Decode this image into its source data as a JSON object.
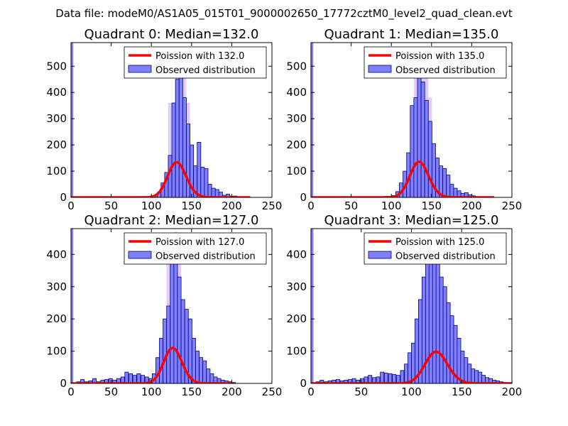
{
  "suptitle": "Data file: modeM0/AS1A05_015T01_9000002650_17772cztM0_level2_quad_clean.evt",
  "chart_data": [
    {
      "type": "bar",
      "title": "Quadrant 0: Median=132.0",
      "xlim": [
        0,
        250
      ],
      "ylim": [
        0,
        590
      ],
      "xticks": [
        0,
        50,
        100,
        150,
        200,
        250
      ],
      "xtick_labels": [
        "0",
        "50",
        "100",
        "150",
        "200",
        "250"
      ],
      "yticks": [
        0,
        100,
        200,
        300,
        400,
        500
      ],
      "ytick_labels": [
        "0",
        "100",
        "200",
        "300",
        "400",
        "500"
      ],
      "legend": {
        "position": "upper right",
        "line_label": "Poission with 132.0",
        "bar_label": "Observed distribution"
      },
      "poisson_mean": 132.0,
      "poisson_scale": 3850,
      "poisson_x_range": [
        0,
        223
      ],
      "edge_bar": {
        "x0": 0,
        "x1": 1,
        "value": 590
      },
      "bin_width": 4.5,
      "bins": [
        [
          67,
          2
        ],
        [
          76,
          3
        ],
        [
          80,
          2
        ],
        [
          90,
          3
        ],
        [
          99,
          3
        ],
        [
          103,
          8
        ],
        [
          107.5,
          20
        ],
        [
          112,
          55
        ],
        [
          116.5,
          95
        ],
        [
          121,
          160
        ],
        [
          125.5,
          360
        ],
        [
          130,
          450
        ],
        [
          134.5,
          500
        ],
        [
          139,
          380
        ],
        [
          143.5,
          280
        ],
        [
          148,
          200
        ],
        [
          152.5,
          120
        ],
        [
          157,
          210
        ],
        [
          161.5,
          115
        ],
        [
          166,
          110
        ],
        [
          170.5,
          50
        ],
        [
          175,
          35
        ],
        [
          179.5,
          30
        ],
        [
          184,
          20
        ],
        [
          188.5,
          8
        ],
        [
          193,
          12
        ],
        [
          197.5,
          5
        ],
        [
          202,
          5
        ],
        [
          206.5,
          3
        ],
        [
          211,
          2
        ]
      ],
      "highlight_bins": [
        [
          121,
          360
        ],
        [
          130,
          530
        ],
        [
          139,
          470
        ],
        [
          143.5,
          360
        ]
      ]
    },
    {
      "type": "bar",
      "title": "Quadrant 1: Median=135.0",
      "xlim": [
        0,
        250
      ],
      "ylim": [
        0,
        590
      ],
      "xticks": [
        0,
        50,
        100,
        150,
        200,
        250
      ],
      "xtick_labels": [
        "0",
        "50",
        "100",
        "150",
        "200",
        "250"
      ],
      "yticks": [
        0,
        100,
        200,
        300,
        400,
        500
      ],
      "ytick_labels": [
        "0",
        "100",
        "200",
        "300",
        "400",
        "500"
      ],
      "legend": {
        "position": "upper right",
        "line_label": "Poission with 135.0",
        "bar_label": "Observed distribution"
      },
      "poisson_mean": 135.0,
      "poisson_scale": 3950,
      "poisson_x_range": [
        0,
        228
      ],
      "edge_bar": {
        "x0": 0,
        "x1": 1,
        "value": 590
      },
      "bin_width": 4.5,
      "bins": [
        [
          72,
          2
        ],
        [
          82,
          3
        ],
        [
          92,
          4
        ],
        [
          101,
          7
        ],
        [
          105.5,
          22
        ],
        [
          110,
          55
        ],
        [
          114.5,
          100
        ],
        [
          119,
          170
        ],
        [
          123.5,
          350
        ],
        [
          128,
          380
        ],
        [
          132.5,
          510
        ],
        [
          137,
          440
        ],
        [
          141.5,
          370
        ],
        [
          146,
          290
        ],
        [
          150.5,
          205
        ],
        [
          155,
          150
        ],
        [
          159.5,
          120
        ],
        [
          164,
          110
        ],
        [
          168.5,
          85
        ],
        [
          173,
          50
        ],
        [
          177.5,
          35
        ],
        [
          182,
          25
        ],
        [
          186.5,
          15
        ],
        [
          191,
          18
        ],
        [
          195.5,
          10
        ],
        [
          200,
          6
        ],
        [
          204.5,
          3
        ],
        [
          209,
          2
        ]
      ],
      "highlight_bins": [
        [
          128,
          520
        ],
        [
          137,
          560
        ],
        [
          141.5,
          480
        ],
        [
          146,
          380
        ]
      ]
    },
    {
      "type": "bar",
      "title": "Quadrant 2: Median=127.0",
      "xlim": [
        0,
        250
      ],
      "ylim": [
        0,
        480
      ],
      "xticks": [
        0,
        50,
        100,
        150,
        200,
        250
      ],
      "xtick_labels": [
        "0",
        "50",
        "100",
        "150",
        "200",
        "250"
      ],
      "yticks": [
        0,
        100,
        200,
        300,
        400
      ],
      "ytick_labels": [
        "0",
        "100",
        "200",
        "300",
        "400"
      ],
      "legend": {
        "position": "upper right",
        "line_label": "Poission with 127.0",
        "bar_label": "Observed distribution"
      },
      "poisson_mean": 127.0,
      "poisson_scale": 3100,
      "poisson_x_range": [
        0,
        203
      ],
      "edge_bar": {
        "x0": 0,
        "x1": 1,
        "value": 480
      },
      "bin_width": 4.5,
      "bins": [
        [
          7,
          5
        ],
        [
          12,
          12
        ],
        [
          17,
          5
        ],
        [
          22,
          8
        ],
        [
          27,
          15
        ],
        [
          32,
          5
        ],
        [
          37,
          10
        ],
        [
          42,
          12
        ],
        [
          47,
          15
        ],
        [
          52,
          10
        ],
        [
          57,
          15
        ],
        [
          62,
          20
        ],
        [
          67,
          35
        ],
        [
          72,
          30
        ],
        [
          77,
          25
        ],
        [
          82,
          30
        ],
        [
          87,
          25
        ],
        [
          92,
          20
        ],
        [
          97,
          15
        ],
        [
          101,
          30
        ],
        [
          105.5,
          80
        ],
        [
          110,
          140
        ],
        [
          114.5,
          200
        ],
        [
          119,
          240
        ],
        [
          123.5,
          420
        ],
        [
          128,
          440
        ],
        [
          132.5,
          330
        ],
        [
          137,
          260
        ],
        [
          141.5,
          230
        ],
        [
          146,
          200
        ],
        [
          150.5,
          140
        ],
        [
          155,
          100
        ],
        [
          159.5,
          80
        ],
        [
          164,
          70
        ],
        [
          168.5,
          45
        ],
        [
          173,
          30
        ],
        [
          177.5,
          20
        ],
        [
          182,
          15
        ],
        [
          186.5,
          10
        ],
        [
          191,
          8
        ],
        [
          195.5,
          5
        ],
        [
          200,
          3
        ]
      ],
      "highlight_bins": [
        [
          119,
          430
        ],
        [
          128,
          470
        ],
        [
          132.5,
          380
        ]
      ]
    },
    {
      "type": "bar",
      "title": "Quadrant 3: Median=125.0",
      "xlim": [
        0,
        200
      ],
      "ylim": [
        0,
        480
      ],
      "xticks": [
        0,
        50,
        100,
        150,
        200
      ],
      "xtick_labels": [
        "0",
        "50",
        "100",
        "150",
        "200"
      ],
      "yticks": [
        0,
        100,
        200,
        300,
        400
      ],
      "ytick_labels": [
        "0",
        "100",
        "200",
        "300",
        "400"
      ],
      "legend": {
        "position": "upper right",
        "line_label": "Poission with 125.0",
        "bar_label": "Observed distribution"
      },
      "poisson_mean": 125.0,
      "poisson_scale": 2750,
      "poisson_x_range": [
        0,
        200
      ],
      "edge_bar": {
        "x0": 0,
        "x1": 1,
        "value": 480
      },
      "bin_width": 3.6,
      "bins": [
        [
          5,
          5
        ],
        [
          9,
          10
        ],
        [
          13,
          5
        ],
        [
          17,
          8
        ],
        [
          21,
          10
        ],
        [
          25,
          12
        ],
        [
          29,
          8
        ],
        [
          33,
          10
        ],
        [
          37,
          12
        ],
        [
          41,
          15
        ],
        [
          45,
          10
        ],
        [
          49,
          15
        ],
        [
          53,
          20
        ],
        [
          57,
          25
        ],
        [
          61,
          18
        ],
        [
          65,
          20
        ],
        [
          69,
          35
        ],
        [
          73,
          32
        ],
        [
          77,
          30
        ],
        [
          81,
          28
        ],
        [
          85,
          25
        ],
        [
          89,
          40
        ],
        [
          93,
          60
        ],
        [
          96.5,
          95
        ],
        [
          100,
          125
        ],
        [
          103.5,
          200
        ],
        [
          107,
          260
        ],
        [
          110.5,
          330
        ],
        [
          114,
          390
        ],
        [
          117.5,
          410
        ],
        [
          121,
          420
        ],
        [
          124.5,
          400
        ],
        [
          128,
          330
        ],
        [
          131.5,
          300
        ],
        [
          135,
          250
        ],
        [
          138.5,
          210
        ],
        [
          142,
          180
        ],
        [
          145.5,
          140
        ],
        [
          149,
          100
        ],
        [
          152.5,
          80
        ],
        [
          156,
          60
        ],
        [
          159.5,
          45
        ],
        [
          163,
          40
        ],
        [
          166.5,
          35
        ],
        [
          170,
          25
        ],
        [
          173.5,
          18
        ],
        [
          177,
          15
        ],
        [
          180.5,
          10
        ],
        [
          184,
          8
        ],
        [
          187.5,
          5
        ],
        [
          191,
          3
        ],
        [
          194.5,
          2
        ]
      ],
      "highlight_bins": [
        [
          117.5,
          460
        ],
        [
          121,
          450
        ]
      ]
    }
  ]
}
